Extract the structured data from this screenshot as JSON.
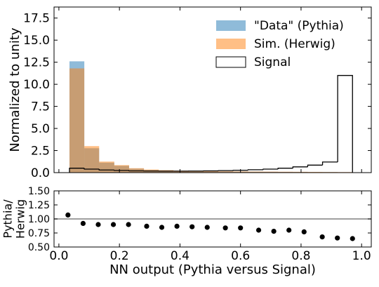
{
  "chart_data": [
    {
      "type": "histogram",
      "ylabel": "Normalized to unity",
      "bins": [
        0.035,
        0.084,
        0.133,
        0.183,
        0.232,
        0.281,
        0.33,
        0.379,
        0.429,
        0.478,
        0.527,
        0.576,
        0.625,
        0.675,
        0.724,
        0.773,
        0.822,
        0.871,
        0.921,
        0.97
      ],
      "series": [
        {
          "name": "\"Data\" (Pythia)",
          "color": "#1f77b4",
          "style": "filled",
          "values": [
            12.6,
            2.76,
            1.13,
            0.77,
            0.45,
            0.3,
            0.24,
            0.19,
            0.17,
            0.14,
            0.13,
            0.12,
            0.1,
            0.09,
            0.08,
            0.07,
            0.05,
            0.05,
            0.04
          ]
        },
        {
          "name": "Sim. (Herwig)",
          "color": "#ff7f0e",
          "style": "filled",
          "values": [
            11.8,
            3.0,
            1.25,
            0.85,
            0.5,
            0.35,
            0.28,
            0.22,
            0.2,
            0.17,
            0.15,
            0.14,
            0.12,
            0.11,
            0.1,
            0.09,
            0.08,
            0.07,
            0.06
          ]
        },
        {
          "name": "Signal",
          "color": "#000000",
          "style": "step",
          "values": [
            0.5,
            0.4,
            0.3,
            0.25,
            0.2,
            0.18,
            0.17,
            0.17,
            0.18,
            0.2,
            0.23,
            0.27,
            0.33,
            0.4,
            0.5,
            0.65,
            0.85,
            1.2,
            11.0
          ]
        }
      ],
      "xlim": [
        -0.016,
        1.032
      ],
      "ylim": [
        0,
        18.75
      ],
      "yticks": [
        {
          "value": 0,
          "label": "0.0"
        },
        2.5,
        {
          "value": 5,
          "label": "5.0"
        },
        7.5,
        {
          "value": 10,
          "label": "10.0"
        },
        12.5,
        {
          "value": 15,
          "label": "15.0"
        },
        17.5
      ],
      "legend": "upper right"
    },
    {
      "type": "scatter",
      "xlabel": "NN output (Pythia versus Signal)",
      "ylabel": [
        "Pythia/",
        "Herwig"
      ],
      "x": [
        0.03,
        0.08,
        0.13,
        0.18,
        0.23,
        0.29,
        0.34,
        0.39,
        0.44,
        0.49,
        0.55,
        0.6,
        0.66,
        0.71,
        0.76,
        0.81,
        0.87,
        0.92,
        0.97
      ],
      "values": [
        1.07,
        0.92,
        0.9,
        0.9,
        0.9,
        0.87,
        0.85,
        0.87,
        0.86,
        0.85,
        0.84,
        0.84,
        0.8,
        0.78,
        0.8,
        0.77,
        0.68,
        0.66,
        0.65
      ],
      "color": "#000000",
      "reference_line": 1,
      "xlim": [
        -0.016,
        1.032
      ],
      "xticks": [
        {
          "value": 0,
          "label": "0.0"
        },
        0.2,
        0.4,
        0.6,
        0.8,
        {
          "value": 1,
          "label": "1.0"
        }
      ],
      "ylim": [
        0.5,
        1.5
      ],
      "yticks": [
        {
          "value": 0.5,
          "label": "0.50"
        },
        {
          "value": 0.75,
          "label": "0.75"
        },
        {
          "value": 1,
          "label": "1.00"
        },
        {
          "value": 1.25,
          "label": "1.25"
        },
        {
          "value": 1.5,
          "label": "1.50"
        }
      ]
    }
  ]
}
